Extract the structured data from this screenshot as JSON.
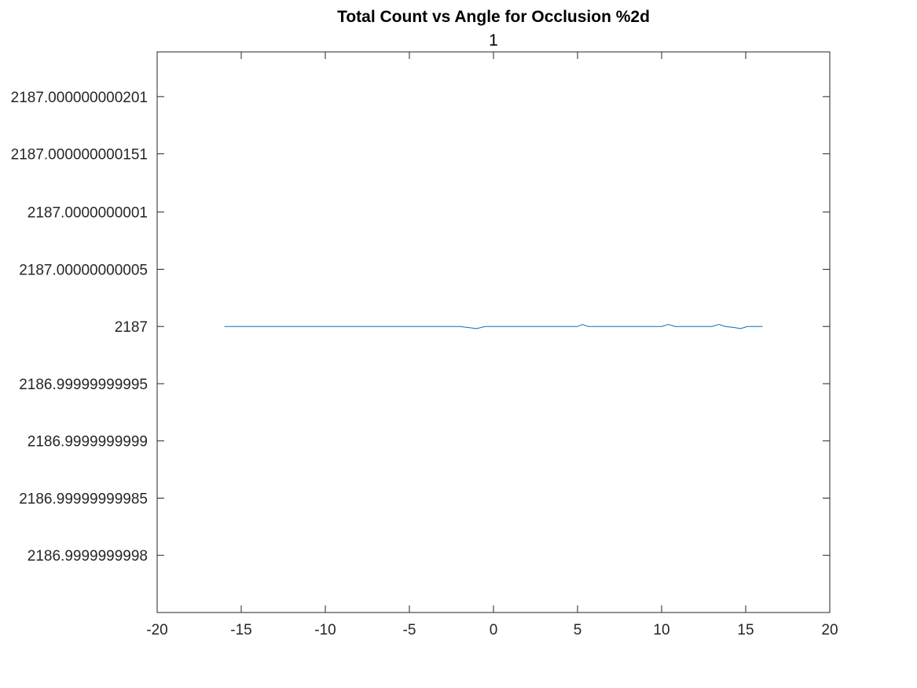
{
  "chart_data": {
    "type": "line",
    "title": "Total Count vs Angle for Occlusion %2d",
    "subtitle": "1",
    "xlabel": "",
    "ylabel": "",
    "xlim": [
      -20,
      20
    ],
    "ylim": [
      2186.99999999975,
      2187.00000000024
    ],
    "x_ticks": [
      -20,
      -15,
      -10,
      -5,
      0,
      5,
      10,
      15,
      20
    ],
    "x_tick_labels": [
      "-20",
      "-15",
      "-10",
      "-5",
      "0",
      "5",
      "10",
      "15",
      "20"
    ],
    "y_ticks": [
      2186.9999999998,
      2186.99999999985,
      2186.9999999999,
      2186.99999999995,
      2187,
      2187.00000000005,
      2187.0000000001,
      2187.000000000151,
      2187.000000000201
    ],
    "y_tick_labels": [
      "2186.9999999998",
      "2186.99999999985",
      "2186.9999999999",
      "2186.99999999995",
      "2187",
      "2187.00000000005",
      "2187.0000000001",
      "2187.000000000151",
      "2187.000000000201"
    ],
    "grid": false,
    "box": true,
    "line_color": "#0072BD",
    "axis_color": "#262626",
    "series": [
      {
        "x": [
          -16,
          -12,
          -8,
          -4,
          -2,
          -1,
          -0.5,
          0,
          2,
          4,
          5,
          5.3,
          5.6,
          8,
          10,
          10.4,
          10.8,
          12,
          13,
          13.4,
          13.8,
          14.3,
          14.7,
          15.1,
          15.5,
          16
        ],
        "y": [
          2187,
          2187,
          2187,
          2187,
          2187,
          2186.999999999998,
          2187,
          2187,
          2187,
          2187,
          2187,
          2187.000000000002,
          2187,
          2187,
          2187,
          2187.000000000002,
          2187,
          2187,
          2187,
          2187.000000000002,
          2187,
          2186.999999999999,
          2186.999999999998,
          2187,
          2187,
          2187
        ]
      }
    ]
  }
}
